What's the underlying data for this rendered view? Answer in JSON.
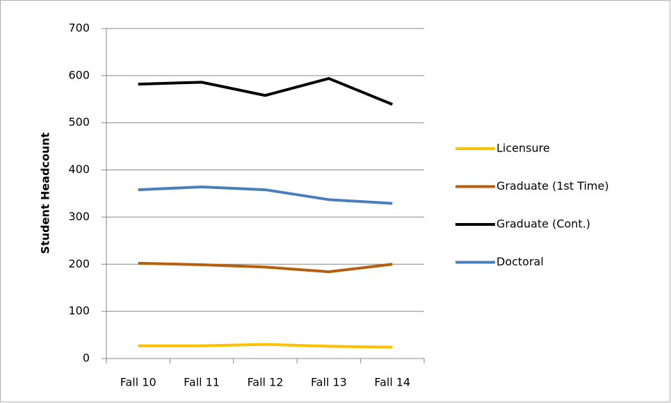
{
  "chart_data": {
    "type": "line",
    "y_label": "Student Headcount",
    "categories": [
      "Fall 10",
      "Fall 11",
      "Fall 12",
      "Fall 13",
      "Fall 14"
    ],
    "series": [
      {
        "name": "Licensure",
        "color": "#ffc000",
        "values": [
          27,
          27,
          30,
          26,
          24
        ]
      },
      {
        "name": "Graduate (1st Time)",
        "color": "#b5600f",
        "values": [
          202,
          199,
          194,
          184,
          200
        ]
      },
      {
        "name": "Graduate (Cont.)",
        "color": "#000000",
        "values": [
          582,
          586,
          558,
          594,
          539
        ]
      },
      {
        "name": "Doctoral",
        "color": "#4a7ebb",
        "values": [
          358,
          364,
          358,
          337,
          329
        ]
      }
    ],
    "ylim": [
      0,
      700
    ],
    "yticks": [
      0,
      100,
      200,
      300,
      400,
      500,
      600,
      700
    ],
    "grid": true,
    "legend": "right"
  }
}
